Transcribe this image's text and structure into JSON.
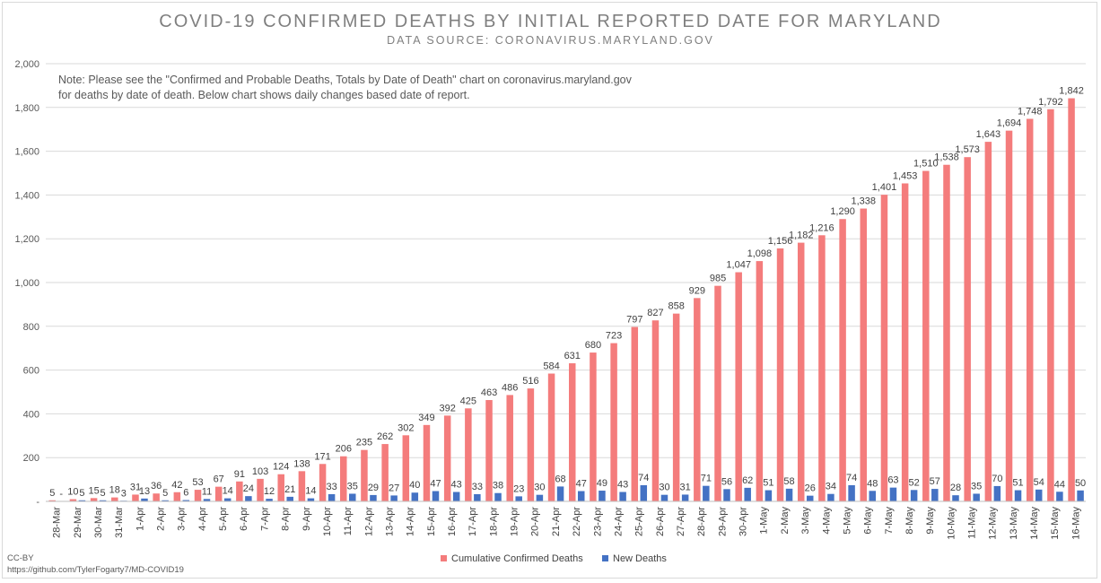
{
  "header": {
    "title": "COVID-19 CONFIRMED DEATHS BY INITIAL REPORTED DATE FOR MARYLAND",
    "subtitle": "DATA SOURCE: CORONAVIRUS.MARYLAND.GOV"
  },
  "note": {
    "line1": "Note: Please see the \"Confirmed and Probable Deaths, Totals by Date of Death\" chart on coronavirus.maryland.gov",
    "line2": "for deaths by date of death. Below chart shows daily changes based date of report."
  },
  "footer": {
    "license": "CC-BY",
    "source_url": "https://github.com/TylerFogarty7/MD-COVID19"
  },
  "chart_data": {
    "type": "bar",
    "ylim": [
      0,
      2000
    ],
    "yticks": [
      "2,000",
      "1,800",
      "1,600",
      "1,400",
      "1,200",
      "1,000",
      "800",
      "600",
      "400",
      "200",
      "-"
    ],
    "grid": true,
    "legend_position": "bottom",
    "categories": [
      "28-Mar",
      "29-Mar",
      "30-Mar",
      "31-Mar",
      "1-Apr",
      "2-Apr",
      "3-Apr",
      "4-Apr",
      "5-Apr",
      "6-Apr",
      "7-Apr",
      "8-Apr",
      "9-Apr",
      "10-Apr",
      "11-Apr",
      "12-Apr",
      "13-Apr",
      "14-Apr",
      "15-Apr",
      "16-Apr",
      "17-Apr",
      "18-Apr",
      "19-Apr",
      "20-Apr",
      "21-Apr",
      "22-Apr",
      "23-Apr",
      "24-Apr",
      "25-Apr",
      "26-Apr",
      "27-Apr",
      "28-Apr",
      "29-Apr",
      "30-Apr",
      "1-May",
      "2-May",
      "3-May",
      "4-May",
      "5-May",
      "6-May",
      "7-May",
      "8-May",
      "9-May",
      "10-May",
      "11-May",
      "12-May",
      "13-May",
      "14-May",
      "15-May",
      "16-May"
    ],
    "series": [
      {
        "name": "Cumulative Confirmed Deaths",
        "color": "#f47c7c",
        "values": [
          5,
          10,
          15,
          18,
          31,
          36,
          42,
          53,
          67,
          91,
          103,
          124,
          138,
          171,
          206,
          235,
          262,
          302,
          349,
          392,
          425,
          463,
          486,
          516,
          584,
          631,
          680,
          723,
          797,
          827,
          858,
          929,
          985,
          1047,
          1098,
          1156,
          1182,
          1216,
          1290,
          1338,
          1401,
          1453,
          1510,
          1538,
          1573,
          1643,
          1694,
          1748,
          1792,
          1842
        ],
        "labels": [
          "5",
          "10",
          "15",
          "18",
          "31",
          "36",
          "42",
          "53",
          "67",
          "91",
          "103",
          "124",
          "138",
          "171",
          "206",
          "235",
          "262",
          "302",
          "349",
          "392",
          "425",
          "463",
          "486",
          "516",
          "584",
          "631",
          "680",
          "723",
          "797",
          "827",
          "858",
          "929",
          "985",
          "1,047",
          "1,098",
          "1,156",
          "1,182",
          "1,216",
          "1,290",
          "1,338",
          "1,401",
          "1,453",
          "1,510",
          "1,538",
          "1,573",
          "1,643",
          "1,694",
          "1,748",
          "1,792",
          "1,842"
        ]
      },
      {
        "name": "New Deaths",
        "color": "#4472c4",
        "values": [
          0,
          5,
          5,
          3,
          13,
          5,
          6,
          11,
          14,
          24,
          12,
          21,
          14,
          33,
          35,
          29,
          27,
          40,
          47,
          43,
          33,
          38,
          23,
          30,
          68,
          47,
          49,
          43,
          74,
          30,
          31,
          71,
          56,
          62,
          51,
          58,
          26,
          34,
          74,
          48,
          63,
          52,
          57,
          28,
          35,
          70,
          51,
          54,
          44,
          50
        ],
        "labels": [
          "-",
          "5",
          "5",
          "3",
          "13",
          "5",
          "6",
          "11",
          "14",
          "24",
          "12",
          "21",
          "14",
          "33",
          "35",
          "29",
          "27",
          "40",
          "47",
          "43",
          "33",
          "38",
          "23",
          "30",
          "68",
          "47",
          "49",
          "43",
          "74",
          "30",
          "31",
          "71",
          "56",
          "62",
          "51",
          "58",
          "26",
          "34",
          "74",
          "48",
          "63",
          "52",
          "57",
          "28",
          "35",
          "70",
          "51",
          "54",
          "44",
          "50"
        ]
      }
    ]
  }
}
